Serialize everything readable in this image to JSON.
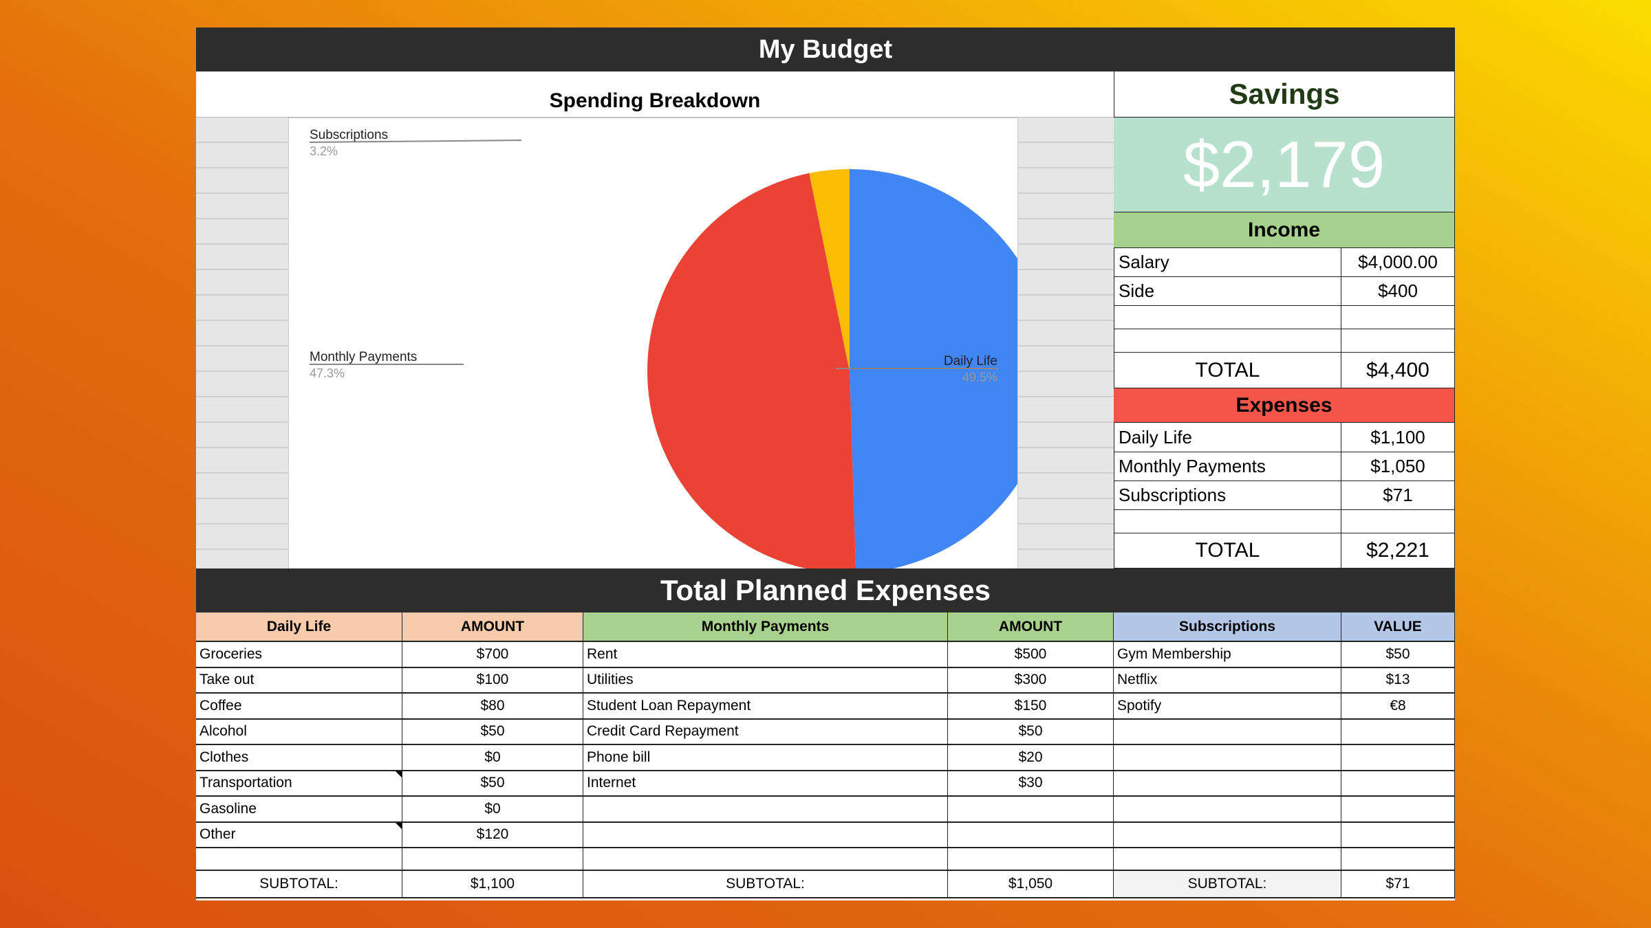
{
  "title": "My Budget",
  "chart_data": {
    "type": "pie",
    "title": "Spending Breakdown",
    "slices": [
      {
        "label": "Daily Life",
        "percent": 49.5,
        "value": 1100,
        "color": "#4285f4"
      },
      {
        "label": "Monthly Payments",
        "percent": 47.3,
        "value": 1050,
        "color": "#ea4335"
      },
      {
        "label": "Subscriptions",
        "percent": 3.2,
        "value": 71,
        "color": "#fbbc04"
      }
    ],
    "percent_labels": [
      "49.5%",
      "47.3%",
      "3.2%"
    ],
    "legend": "labels-with-leader-lines"
  },
  "savings": {
    "title": "Savings",
    "amount": "$2,179",
    "color": "#b7e1cd"
  },
  "income": {
    "title": "Income",
    "color": "#a8d08d",
    "rows": [
      {
        "label": "Salary",
        "value": "$4,000.00"
      },
      {
        "label": "Side",
        "value": "$400"
      }
    ],
    "total_label": "TOTAL",
    "total": "$4,400"
  },
  "expenses": {
    "title": "Expenses",
    "color": "#f4564a",
    "rows": [
      {
        "label": "Daily Life",
        "value": "$1,100"
      },
      {
        "label": "Monthly Payments",
        "value": "$1,050"
      },
      {
        "label": "Subscriptions",
        "value": "$71"
      }
    ],
    "total_label": "TOTAL",
    "total": "$2,221"
  },
  "planned": {
    "title": "Total Planned Expenses",
    "daily": {
      "header": "Daily Life",
      "amount_header": "AMOUNT",
      "color": "#f8cbad",
      "rows": [
        [
          "Groceries",
          "$700"
        ],
        [
          "Take out",
          "$100"
        ],
        [
          "Coffee",
          "$80"
        ],
        [
          "Alcohol",
          "$50"
        ],
        [
          "Clothes",
          "$0"
        ],
        [
          "Transportation",
          "$50"
        ],
        [
          "Gasoline",
          "$0"
        ],
        [
          "Other",
          "$120"
        ]
      ],
      "subtotal_label": "SUBTOTAL:",
      "subtotal": "$1,100"
    },
    "monthly": {
      "header": "Monthly Payments",
      "amount_header": "AMOUNT",
      "color": "#a9d18e",
      "rows": [
        [
          "Rent",
          "$500"
        ],
        [
          "Utilities",
          "$300"
        ],
        [
          "Student Loan Repayment",
          "$150"
        ],
        [
          "Credit Card Repayment",
          "$50"
        ],
        [
          "Phone bill",
          "$20"
        ],
        [
          "Internet",
          "$30"
        ]
      ],
      "subtotal_label": "SUBTOTAL:",
      "subtotal": "$1,050"
    },
    "subs": {
      "header": "Subscriptions",
      "amount_header": "VALUE",
      "color": "#b4c7e7",
      "rows": [
        [
          "Gym Membership",
          "$50"
        ],
        [
          "Netflix",
          "$13"
        ],
        [
          "Spotify",
          "€8"
        ]
      ],
      "subtotal_label": "SUBTOTAL:",
      "subtotal": "$71"
    }
  }
}
